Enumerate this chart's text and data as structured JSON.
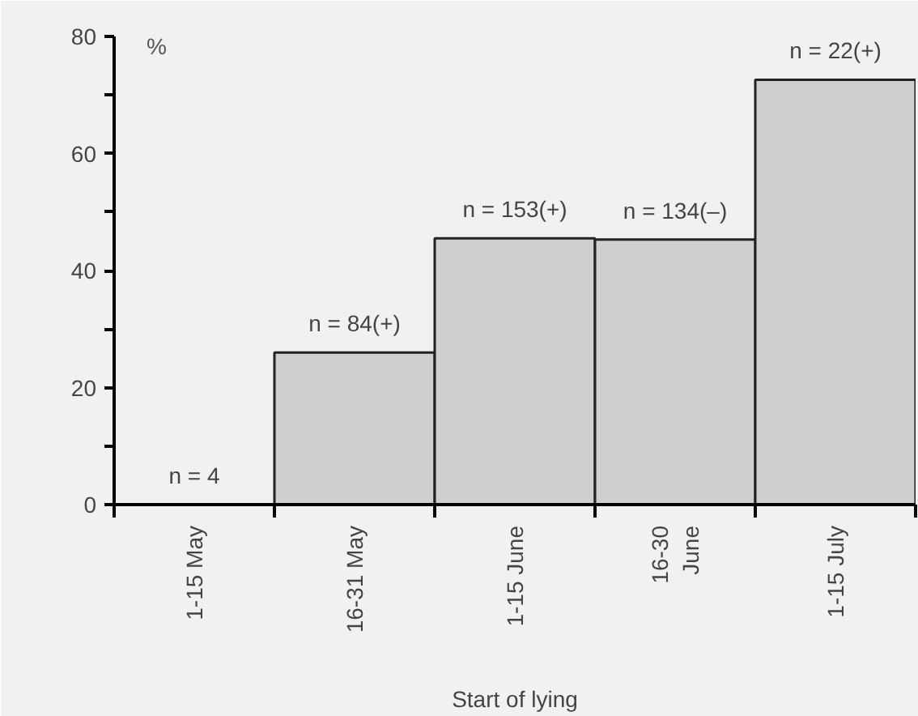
{
  "chart_data": {
    "type": "bar",
    "xlabel": "Start of lying",
    "ylabel": "%",
    "categories": [
      "1-15 May",
      "16-31 May",
      "1-15 June",
      "16-30\nJune",
      "1-15 July"
    ],
    "values": [
      0,
      26,
      45.5,
      45.3,
      72.6
    ],
    "color": "#cfcfcf",
    "ylim": [
      0,
      80
    ],
    "yticks": [
      0,
      {
        "value": 10,
        "label": null
      },
      20,
      {
        "value": 30,
        "label": null
      },
      40,
      {
        "value": 50,
        "label": null
      },
      60,
      {
        "value": 70,
        "label": null
      },
      80
    ],
    "grid": false,
    "annotations": [
      {
        "text": "n = 4",
        "x": "1-15 May",
        "y": 0
      },
      {
        "text": "n = 84(+)",
        "x": "16-31 May",
        "y": 26
      },
      {
        "text": "n = 153(+)",
        "x": "1-15 June",
        "y": 45.5
      },
      {
        "text": "n = 134(–)",
        "x": "16-30\nJune",
        "y": 45.3
      },
      {
        "text": "n = 22(+)",
        "x": "1-15 July",
        "y": 72.6
      }
    ]
  }
}
